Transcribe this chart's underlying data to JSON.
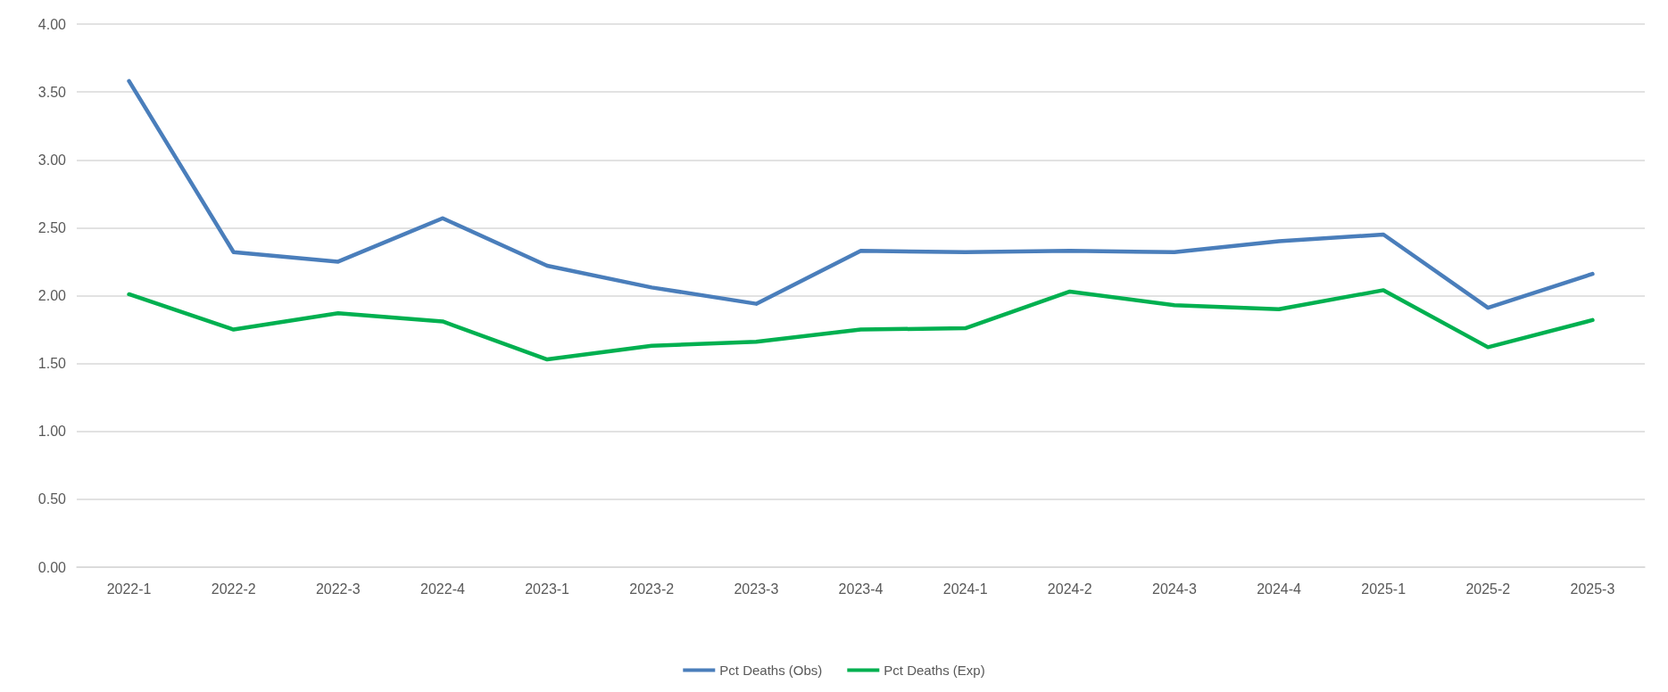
{
  "chart_data": {
    "type": "line",
    "categories": [
      "2022-1",
      "2022-2",
      "2022-3",
      "2022-4",
      "2023-1",
      "2023-2",
      "2023-3",
      "2023-4",
      "2024-1",
      "2024-2",
      "2024-3",
      "2024-4",
      "2025-1",
      "2025-2",
      "2025-3"
    ],
    "series": [
      {
        "name": "Pct Deaths (Obs)",
        "color": "#4a7ebb",
        "values": [
          3.58,
          2.32,
          2.25,
          2.57,
          2.22,
          2.06,
          1.94,
          2.33,
          2.32,
          2.33,
          2.32,
          2.4,
          2.45,
          1.91,
          2.16
        ]
      },
      {
        "name": "Pct Deaths (Exp)",
        "color": "#00b050",
        "values": [
          2.01,
          1.75,
          1.87,
          1.81,
          1.53,
          1.63,
          1.66,
          1.75,
          1.76,
          2.03,
          1.93,
          1.9,
          2.04,
          1.62,
          1.82
        ]
      }
    ],
    "ylim": [
      0,
      4
    ],
    "yticks": [
      {
        "value": 0,
        "label": "0.00"
      },
      {
        "value": 0.5,
        "label": "0.50"
      },
      {
        "value": 1,
        "label": "1.00"
      },
      {
        "value": 1.5,
        "label": "1.50"
      },
      {
        "value": 2,
        "label": "2.00"
      },
      {
        "value": 2.5,
        "label": "2.50"
      },
      {
        "value": 3,
        "label": "3.00"
      },
      {
        "value": 3.5,
        "label": "3.50"
      },
      {
        "value": 4,
        "label": "4.00"
      }
    ],
    "grid": "y",
    "legend": "bottom",
    "marker": "none",
    "line_style": "solid"
  }
}
